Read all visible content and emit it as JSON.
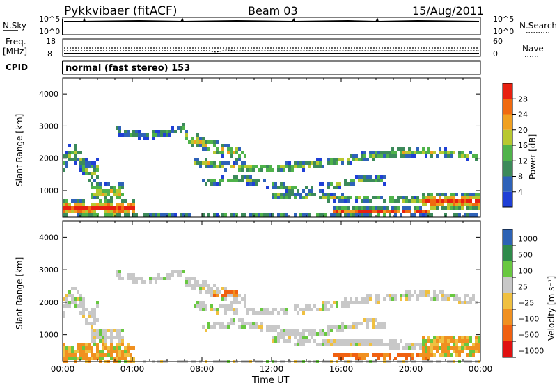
{
  "header": {
    "radar": "Pykkvibaer (fitACF)",
    "beam": "Beam 03",
    "date": "15/Aug/2011"
  },
  "noise_panel": {
    "left_label": "N.Sky",
    "right_label": "N.Search",
    "left_ticks": [
      "10^5",
      "10^0"
    ],
    "right_ticks": [
      "10^5",
      "10^0"
    ]
  },
  "freq_panel": {
    "left_label_1": "Freq.",
    "left_label_2": "[MHz]",
    "right_label": "Nave",
    "left_ticks": [
      "18",
      "8"
    ],
    "right_ticks": [
      "60",
      "0"
    ]
  },
  "cpid_panel": {
    "label": "CPID",
    "text": "normal (fast stereo) 153"
  },
  "colors": {
    "power": [
      "#1f3fd6",
      "#2e62b8",
      "#3c8a5a",
      "#4fb34a",
      "#b8c830",
      "#f0a020",
      "#f06a10",
      "#e82010"
    ],
    "velocity": [
      "#e01010",
      "#f06010",
      "#f09020",
      "#f0c040",
      "#c8c8c8",
      "#68c840",
      "#2e8a4a",
      "#2c62b4"
    ]
  },
  "chart_data": [
    {
      "type": "heatmap",
      "title": "",
      "xlabel": "",
      "ylabel": "Slant Range [km]",
      "ylim": [
        180,
        4500
      ],
      "xlim": [
        0,
        24
      ],
      "y_ticks": [
        "1000",
        "2000",
        "3000",
        "4000"
      ],
      "x_ticks": [],
      "colorbar": {
        "label": "Power [dB]",
        "ticks": [
          "4",
          "8",
          "12",
          "16",
          "20",
          "24",
          "28"
        ],
        "range": [
          0,
          32
        ]
      },
      "grid": false
    },
    {
      "type": "heatmap",
      "title": "",
      "xlabel": "Time UT",
      "ylabel": "Slant Range [km]",
      "ylim": [
        180,
        4500
      ],
      "xlim": [
        0,
        24
      ],
      "y_ticks": [
        "1000",
        "2000",
        "3000",
        "4000"
      ],
      "x_ticks": [
        "00:00",
        "04:00",
        "08:00",
        "12:00",
        "16:00",
        "20:00",
        "00:00"
      ],
      "colorbar": {
        "label": "Velocity [m s⁻¹]",
        "ticks": [
          "1000",
          "500",
          "100",
          "25",
          "−25",
          "−100",
          "−500",
          "−1000"
        ]
      },
      "grid": false
    }
  ]
}
